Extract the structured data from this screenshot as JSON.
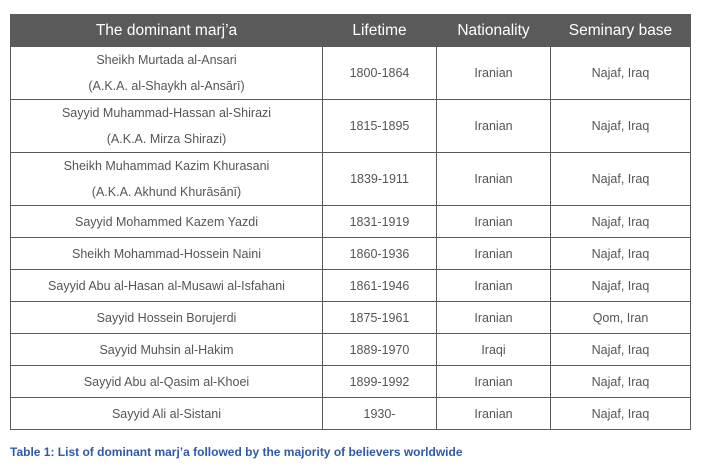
{
  "table": {
    "headers": [
      "The dominant marj’a",
      "Lifetime",
      "Nationality",
      "Seminary base"
    ],
    "rows": [
      {
        "name": "Sheikh Murtada al-Ansari",
        "aka": "(A.K.A. al-Shaykh al-Ansārī)",
        "lifetime": "1800-1864",
        "nationality": "Iranian",
        "seminary": "Najaf, Iraq"
      },
      {
        "name": "Sayyid Muhammad-Hassan al-Shirazi",
        "aka": "(A.K.A. Mirza Shirazi)",
        "lifetime": "1815-1895",
        "nationality": "Iranian",
        "seminary": "Najaf, Iraq"
      },
      {
        "name": "Sheikh Muhammad Kazim Khurasani",
        "aka": "(A.K.A. Akhund Khurāsānī)",
        "lifetime": "1839-1911",
        "nationality": "Iranian",
        "seminary": "Najaf, Iraq"
      },
      {
        "name": "Sayyid Mohammed Kazem Yazdi",
        "lifetime": "1831-1919",
        "nationality": "Iranian",
        "seminary": "Najaf, Iraq"
      },
      {
        "name": "Sheikh Mohammad-Hossein Naini",
        "lifetime": "1860-1936",
        "nationality": "Iranian",
        "seminary": "Najaf, Iraq"
      },
      {
        "name": "Sayyid Abu al-Hasan al-Musawi al-Isfahani",
        "lifetime": "1861-1946",
        "nationality": "Iranian",
        "seminary": "Najaf, Iraq"
      },
      {
        "name": "Sayyid Hossein Borujerdi",
        "lifetime": "1875-1961",
        "nationality": "Iranian",
        "seminary": "Qom, Iran"
      },
      {
        "name": "Sayyid Muhsin al-Hakim",
        "lifetime": "1889-1970",
        "nationality": "Iraqi",
        "seminary": "Najaf, Iraq"
      },
      {
        "name": "Sayyid Abu al-Qasim al-Khoei",
        "lifetime": "1899-1992",
        "nationality": "Iranian",
        "seminary": "Najaf, Iraq"
      },
      {
        "name": "Sayyid Ali al-Sistani",
        "lifetime": "1930-",
        "nationality": "Iranian",
        "seminary": "Najaf, Iraq"
      }
    ]
  },
  "caption": "Table 1:  List of dominant marj’a followed by the majority of believers worldwide",
  "colors": {
    "header_bg": "#5a5a5a",
    "header_text": "#ffffff",
    "cell_text": "#555555",
    "border": "#5a5a5a",
    "caption": "#2e5aa8"
  }
}
